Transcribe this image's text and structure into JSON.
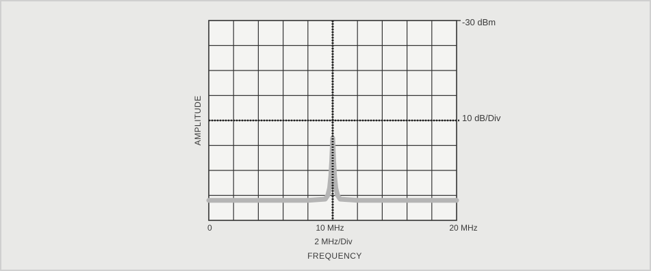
{
  "chart_data": {
    "type": "line",
    "title": "",
    "xlabel": "FREQUENCY",
    "ylabel": "AMPLITUDE",
    "x_unit_label": "2 MHz/Div",
    "y_scale_label": "10 dB/Div",
    "reference_level_label": "-30 dBm",
    "x_tick_labels": [
      {
        "x": 0,
        "label": "0"
      },
      {
        "x": 10,
        "label": "10 MHz"
      },
      {
        "x": 20,
        "label": "20 MHz"
      }
    ],
    "xlim": [
      0,
      20
    ],
    "ylim": [
      -110,
      -30
    ],
    "grid": true,
    "divisions": {
      "x": 10,
      "y": 8
    },
    "marker_x": 10,
    "marker_y": -70,
    "series": [
      {
        "color": "#b5b5b5",
        "points": [
          [
            0,
            -102
          ],
          [
            2,
            -102
          ],
          [
            4,
            -102
          ],
          [
            6,
            -102
          ],
          [
            8,
            -102
          ],
          [
            9.4,
            -101.5
          ],
          [
            9.6,
            -100
          ],
          [
            9.75,
            -97
          ],
          [
            9.85,
            -92
          ],
          [
            9.92,
            -86
          ],
          [
            9.97,
            -80
          ],
          [
            10,
            -77
          ],
          [
            10.03,
            -80
          ],
          [
            10.08,
            -86
          ],
          [
            10.15,
            -92
          ],
          [
            10.25,
            -97
          ],
          [
            10.4,
            -100
          ],
          [
            10.6,
            -101.5
          ],
          [
            12,
            -102
          ],
          [
            14,
            -102
          ],
          [
            16,
            -102
          ],
          [
            18,
            -102
          ],
          [
            20,
            -102
          ]
        ]
      }
    ]
  }
}
